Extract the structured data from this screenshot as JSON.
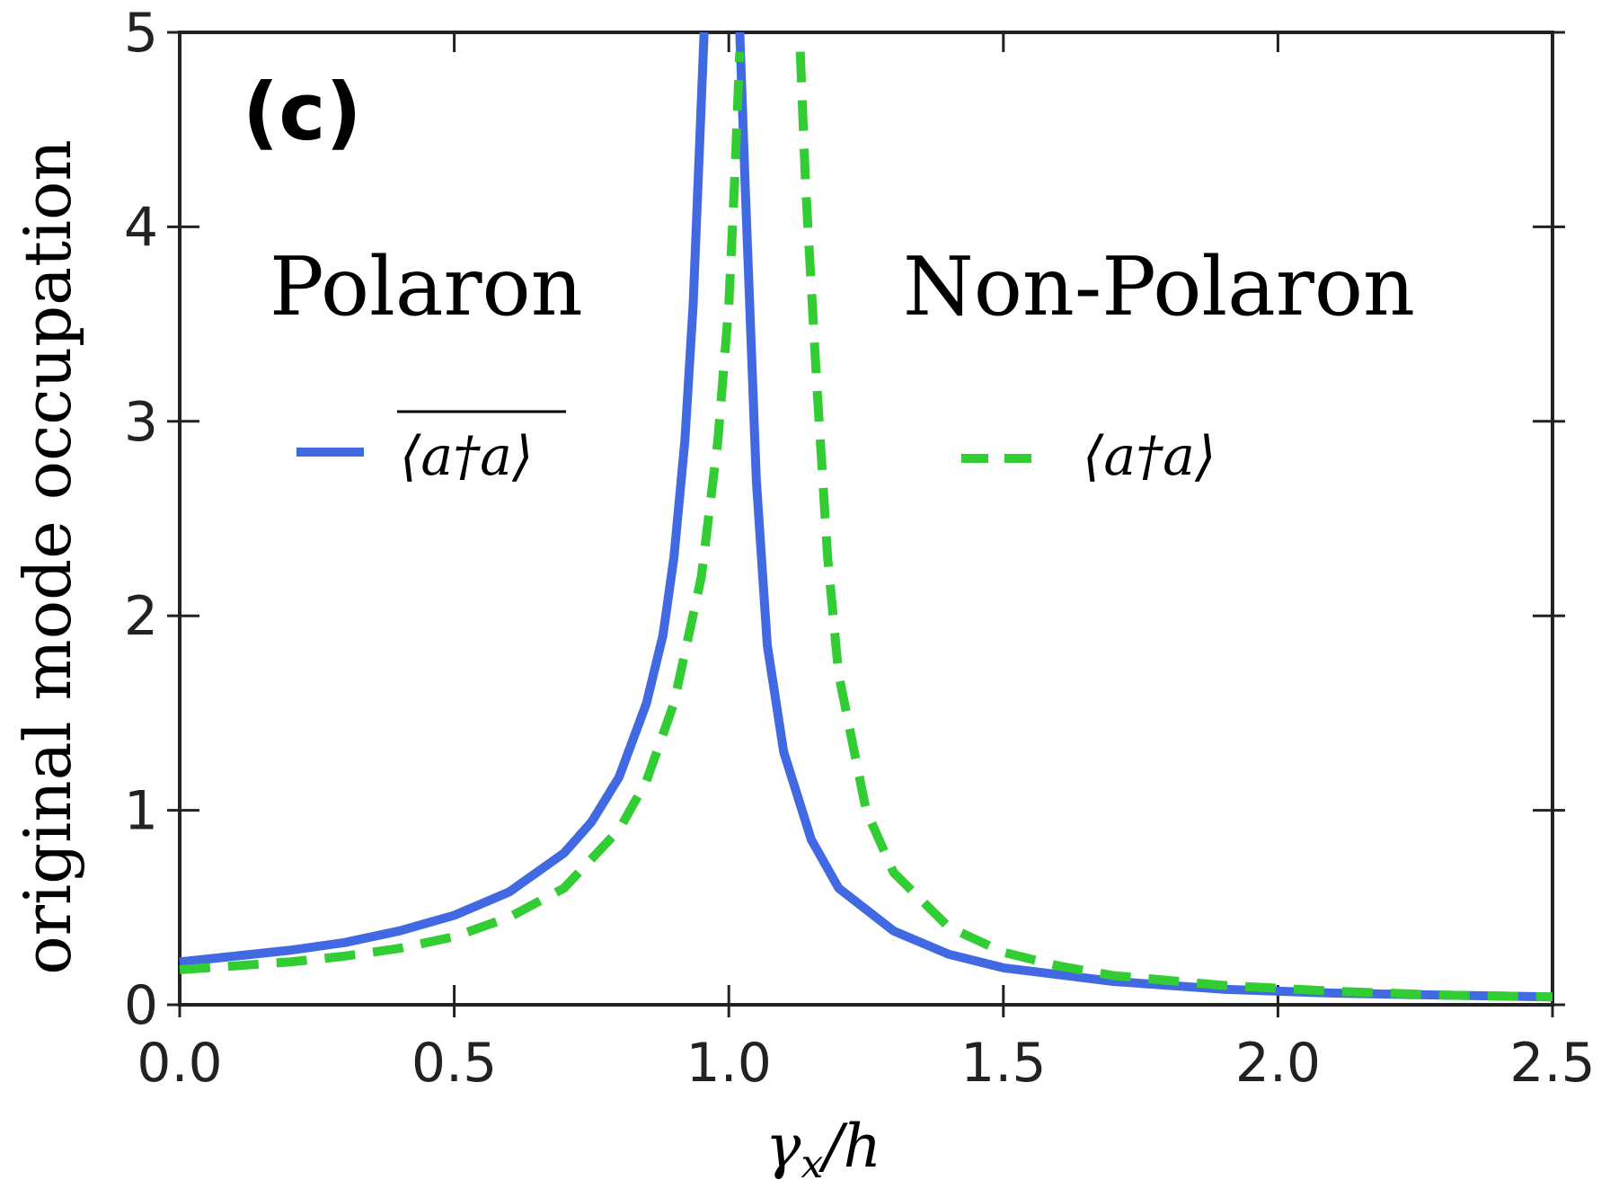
{
  "chart_data": {
    "type": "line",
    "panel_label": "(c)",
    "xlabel": "γx/h",
    "xlabel_main": "γ",
    "xlabel_sub": "x",
    "xlabel_rest": "/h",
    "ylabel": "original mode occupation",
    "xlim": [
      0.0,
      2.5
    ],
    "ylim": [
      0,
      5
    ],
    "x_ticks": [
      "0.0",
      "0.5",
      "1.0",
      "1.5",
      "2.0",
      "2.5"
    ],
    "y_ticks": [
      "0",
      "1",
      "2",
      "3",
      "4",
      "5"
    ],
    "x_tick_values": [
      0.0,
      0.5,
      1.0,
      1.5,
      2.0,
      2.5
    ],
    "y_tick_values": [
      0,
      1,
      2,
      3,
      4,
      5
    ],
    "annotations": {
      "left": "Polaron",
      "right": "Non-Polaron"
    },
    "series": [
      {
        "legend_label": "⟨a†a⟩",
        "overline": true,
        "color": "#4169e1",
        "style": "solid",
        "segments": [
          [
            [
              0.0,
              0.22
            ],
            [
              0.1,
              0.25
            ],
            [
              0.2,
              0.28
            ],
            [
              0.3,
              0.32
            ],
            [
              0.4,
              0.38
            ],
            [
              0.5,
              0.46
            ],
            [
              0.6,
              0.58
            ],
            [
              0.7,
              0.78
            ],
            [
              0.75,
              0.94
            ],
            [
              0.8,
              1.17
            ],
            [
              0.85,
              1.55
            ],
            [
              0.88,
              1.9
            ],
            [
              0.9,
              2.3
            ],
            [
              0.92,
              2.9
            ],
            [
              0.935,
              3.6
            ],
            [
              0.945,
              4.3
            ],
            [
              0.955,
              5.0
            ]
          ],
          [
            [
              1.02,
              5.0
            ],
            [
              1.03,
              4.2
            ],
            [
              1.05,
              2.7
            ],
            [
              1.07,
              1.85
            ],
            [
              1.1,
              1.3
            ],
            [
              1.15,
              0.85
            ],
            [
              1.2,
              0.6
            ],
            [
              1.3,
              0.38
            ],
            [
              1.4,
              0.26
            ],
            [
              1.5,
              0.19
            ],
            [
              1.7,
              0.12
            ],
            [
              1.9,
              0.08
            ],
            [
              2.1,
              0.06
            ],
            [
              2.3,
              0.05
            ],
            [
              2.5,
              0.04
            ]
          ]
        ]
      },
      {
        "legend_label": "⟨a†a⟩",
        "overline": false,
        "color": "#32cd32",
        "style": "dashed",
        "segments": [
          [
            [
              0.0,
              0.18
            ],
            [
              0.1,
              0.2
            ],
            [
              0.2,
              0.22
            ],
            [
              0.3,
              0.25
            ],
            [
              0.4,
              0.29
            ],
            [
              0.5,
              0.35
            ],
            [
              0.6,
              0.45
            ],
            [
              0.7,
              0.6
            ],
            [
              0.8,
              0.9
            ],
            [
              0.85,
              1.15
            ],
            [
              0.9,
              1.55
            ],
            [
              0.95,
              2.2
            ],
            [
              0.98,
              2.9
            ],
            [
              1.0,
              3.6
            ],
            [
              1.01,
              4.2
            ],
            [
              1.02,
              4.9
            ]
          ],
          [
            [
              1.13,
              4.9
            ],
            [
              1.14,
              4.2
            ],
            [
              1.16,
              3.2
            ],
            [
              1.18,
              2.3
            ],
            [
              1.2,
              1.7
            ],
            [
              1.25,
              1.0
            ],
            [
              1.3,
              0.68
            ],
            [
              1.4,
              0.4
            ],
            [
              1.5,
              0.27
            ],
            [
              1.6,
              0.2
            ],
            [
              1.7,
              0.15
            ],
            [
              1.9,
              0.1
            ],
            [
              2.1,
              0.07
            ],
            [
              2.3,
              0.05
            ],
            [
              2.5,
              0.04
            ]
          ]
        ]
      }
    ]
  }
}
